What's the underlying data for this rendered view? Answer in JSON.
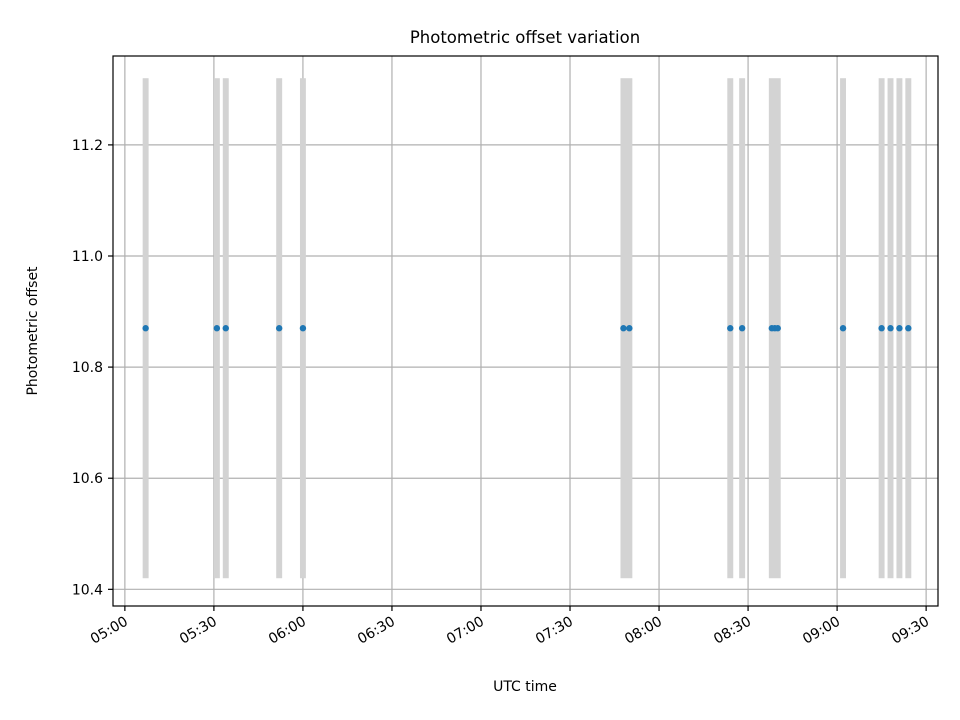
{
  "chart_data": {
    "type": "scatter",
    "title": "Photometric offset variation",
    "xlabel": "UTC time",
    "ylabel": "Photometric offset",
    "x_tick_labels": [
      "05:00",
      "05:30",
      "06:00",
      "06:30",
      "07:00",
      "07:30",
      "08:00",
      "08:30",
      "09:00",
      "09:30"
    ],
    "y_tick_labels": [
      "10.4",
      "10.6",
      "10.8",
      "11.0",
      "11.2"
    ],
    "xlim": [
      "04:56",
      "09:34"
    ],
    "ylim": [
      10.37,
      11.36
    ],
    "grid": true,
    "points": [
      {
        "x": "05:07",
        "y": 10.87
      },
      {
        "x": "05:31",
        "y": 10.87
      },
      {
        "x": "05:34",
        "y": 10.87
      },
      {
        "x": "05:52",
        "y": 10.87
      },
      {
        "x": "06:00",
        "y": 10.87
      },
      {
        "x": "07:48",
        "y": 10.87
      },
      {
        "x": "07:50",
        "y": 10.87
      },
      {
        "x": "08:24",
        "y": 10.87
      },
      {
        "x": "08:28",
        "y": 10.87
      },
      {
        "x": "08:38",
        "y": 10.87
      },
      {
        "x": "08:39",
        "y": 10.87
      },
      {
        "x": "08:40",
        "y": 10.87
      },
      {
        "x": "09:02",
        "y": 10.87
      },
      {
        "x": "09:15",
        "y": 10.87
      },
      {
        "x": "09:18",
        "y": 10.87
      },
      {
        "x": "09:21",
        "y": 10.87
      },
      {
        "x": "09:24",
        "y": 10.87
      }
    ],
    "spans": [
      {
        "start": "05:06",
        "end": "05:08",
        "low": 10.42,
        "high": 11.32
      },
      {
        "start": "05:30",
        "end": "05:32",
        "low": 10.42,
        "high": 11.32
      },
      {
        "start": "05:33",
        "end": "05:35",
        "low": 10.42,
        "high": 11.32
      },
      {
        "start": "05:51",
        "end": "05:53",
        "low": 10.42,
        "high": 11.32
      },
      {
        "start": "05:59",
        "end": "06:01",
        "low": 10.42,
        "high": 11.32
      },
      {
        "start": "07:47",
        "end": "07:51",
        "low": 10.42,
        "high": 11.32
      },
      {
        "start": "08:23",
        "end": "08:25",
        "low": 10.42,
        "high": 11.32
      },
      {
        "start": "08:27",
        "end": "08:29",
        "low": 10.42,
        "high": 11.32
      },
      {
        "start": "08:37",
        "end": "08:41",
        "low": 10.42,
        "high": 11.32
      },
      {
        "start": "09:01",
        "end": "09:03",
        "low": 10.42,
        "high": 11.32
      },
      {
        "start": "09:14",
        "end": "09:16",
        "low": 10.42,
        "high": 11.32
      },
      {
        "start": "09:17",
        "end": "09:19",
        "low": 10.42,
        "high": 11.32
      },
      {
        "start": "09:20",
        "end": "09:22",
        "low": 10.42,
        "high": 11.32
      },
      {
        "start": "09:23",
        "end": "09:25",
        "low": 10.42,
        "high": 11.32
      }
    ],
    "colors": {
      "points": "#1f77b4",
      "spans": "#d3d3d3",
      "grid": "#b0b0b0",
      "axes": "#000000"
    }
  }
}
